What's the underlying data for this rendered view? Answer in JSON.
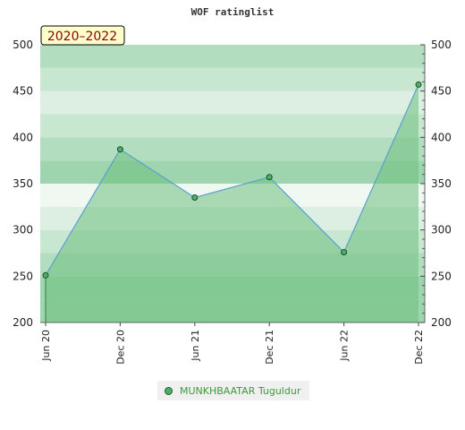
{
  "chart_data": {
    "type": "area",
    "title": "WOF ratinglist",
    "badge": "2020–2022",
    "x": [
      "Jun 20",
      "Dec 20",
      "Jun 21",
      "Dec 21",
      "Jun 22",
      "Dec 22"
    ],
    "series": [
      {
        "name": "MUNKHBAATAR Tuguldur",
        "values": [
          251,
          387,
          335,
          357,
          276,
          457
        ]
      }
    ],
    "ylim": [
      200,
      500
    ],
    "yticks": [
      200,
      250,
      300,
      350,
      400,
      450,
      500
    ],
    "y2ticks": [
      200,
      250,
      300,
      350,
      400,
      450,
      500
    ],
    "colors": {
      "area": "#6dbf7e",
      "line": "#5aa0d0",
      "marker": "#4caf6a",
      "badge_bg": "#ffffcc"
    }
  }
}
